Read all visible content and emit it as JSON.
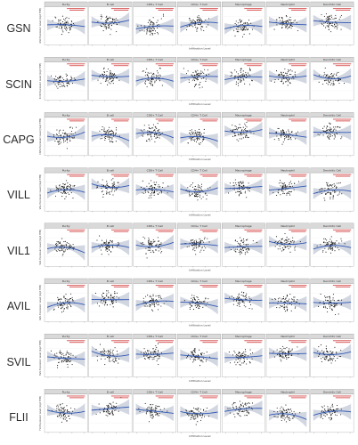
{
  "figure": {
    "colors": {
      "strip_fill": "#d9d9d9",
      "panel_border": "#8c8c8c",
      "point": "#111111",
      "fit_line": "#2f57b5",
      "ci_band": "#c9cfdb",
      "annotation_text": "#d03030"
    },
    "panel_titles": [
      "Purity",
      "B cell",
      "CD8+ T Cell",
      "CD4+ T Cell",
      "Macrophage",
      "Neutrophil",
      "Dendritic Cell"
    ],
    "x_axis_label": "Infiltration Level",
    "y_axis_label_pattern": "Expression Level (log2 TPM)"
  },
  "chart_data": [
    {
      "type": "scatter",
      "gene": "GSN",
      "panels": [
        "Purity",
        "B cell",
        "CD8+ T Cell",
        "CD4+ T Cell",
        "Macrophage",
        "Neutrophil",
        "Dendritic Cell"
      ],
      "fit": "loess",
      "ylabel": "GSN Expression Level (log2 TPM)",
      "xlabel": "Infiltration Level"
    },
    {
      "type": "scatter",
      "gene": "SCIN",
      "panels": [
        "Purity",
        "B cell",
        "CD8+ T Cell",
        "CD4+ T Cell",
        "Macrophage",
        "Neutrophil",
        "Dendritic Cell"
      ],
      "fit": "loess",
      "ylabel": "SCIN Expression Level (log2 TPM)",
      "xlabel": "Infiltration Level"
    },
    {
      "type": "scatter",
      "gene": "CAPG",
      "panels": [
        "Purity",
        "B cell",
        "CD8+ T Cell",
        "CD4+ T Cell",
        "Macrophage",
        "Neutrophil",
        "Dendritic Cell"
      ],
      "fit": "loess",
      "ylabel": "CAPG Expression Level (log2 TPM)",
      "xlabel": "Infiltration Level"
    },
    {
      "type": "scatter",
      "gene": "VILL",
      "panels": [
        "Purity",
        "B cell",
        "CD8+ T Cell",
        "CD4+ T Cell",
        "Macrophage",
        "Neutrophil",
        "Dendritic Cell"
      ],
      "fit": "loess",
      "ylabel": "VILL Expression Level (log2 TPM)",
      "xlabel": "Infiltration Level"
    },
    {
      "type": "scatter",
      "gene": "VIL1",
      "panels": [
        "Purity",
        "B cell",
        "CD8+ T Cell",
        "CD4+ T Cell",
        "Macrophage",
        "Neutrophil",
        "Dendritic Cell"
      ],
      "fit": "loess",
      "ylabel": "VIL1 Expression Level (log2 TPM)",
      "xlabel": "Infiltration Level"
    },
    {
      "type": "scatter",
      "gene": "AVIL",
      "panels": [
        "Purity",
        "B cell",
        "CD8+ T Cell",
        "CD4+ T Cell",
        "Macrophage",
        "Neutrophil",
        "Dendritic Cell"
      ],
      "fit": "loess",
      "ylabel": "AVIL Expression Level (log2 TPM)",
      "xlabel": "Infiltration Level"
    },
    {
      "type": "scatter",
      "gene": "SVIL",
      "panels": [
        "Purity",
        "B cell",
        "CD8+ T Cell",
        "CD4+ T Cell",
        "Macrophage",
        "Neutrophil",
        "Dendritic Cell"
      ],
      "fit": "loess",
      "ylabel": "SVIL Expression Level (log2 TPM)",
      "xlabel": "Infiltration Level"
    },
    {
      "type": "scatter",
      "gene": "FLII",
      "panels": [
        "Purity",
        "B cell",
        "CD8+ T Cell",
        "CD4+ T Cell",
        "Macrophage",
        "Neutrophil",
        "Dendritic Cell"
      ],
      "fit": "loess",
      "ylabel": "FLII Expression Level (log2 TPM)",
      "xlabel": "Infiltration Level"
    }
  ]
}
